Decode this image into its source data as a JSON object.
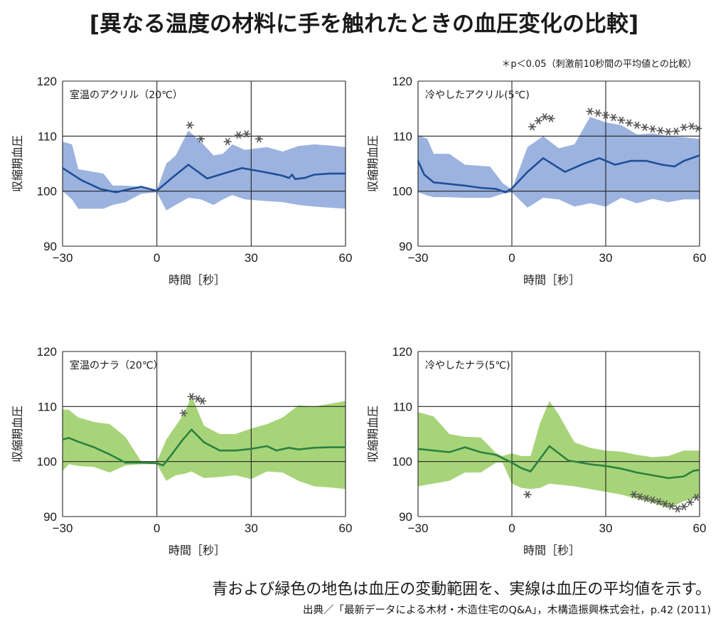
{
  "title": "[異なる温度の材料に手を触れたときの血圧変化の比較]",
  "significance_note": "＊p＜0.05（刺激前10秒間の平均値との比較）",
  "caption": "青および緑色の地色は血圧の変動範囲を、実線は血圧の平均値を示す。",
  "source": "出典／「最新データによる木材・木造住宅のQ&A」，木構造振興株式会社，p.42 (2011)",
  "colors": {
    "blue_band": "#9cb3df",
    "blue_line": "#1f4f97",
    "green_band": "#a8d479",
    "green_line": "#2a8240",
    "grid": "#222222",
    "asterisk": "#555555"
  },
  "chart_data": [
    {
      "type": "line",
      "panel_label": "室温のアクリル（20℃）",
      "xlabel": "時間［秒］",
      "ylabel": "収縮期血圧",
      "xlim": [
        -30,
        60
      ],
      "ylim": [
        90,
        120
      ],
      "xticks": [
        -30,
        0,
        30,
        60
      ],
      "yticks": [
        90,
        100,
        110,
        120
      ],
      "xtick_labels": [
        "−30",
        "0",
        "30",
        "60"
      ],
      "ytick_labels": [
        "90",
        "100",
        "110",
        "120"
      ],
      "grid": true,
      "color_key": "blue",
      "mean": {
        "x": [
          -30,
          -24,
          -18,
          -13,
          -10,
          -5,
          -1,
          0,
          5,
          10,
          16,
          20,
          27,
          34,
          40,
          42,
          43,
          44,
          47,
          50,
          55,
          60
        ],
        "y": [
          104.2,
          102.0,
          100.4,
          99.8,
          100.2,
          100.8,
          100.2,
          100.1,
          102.5,
          104.8,
          102.3,
          103.0,
          104.2,
          103.5,
          102.8,
          102.4,
          103.0,
          102.2,
          102.4,
          103.0,
          103.2,
          103.2
        ]
      },
      "band_upper": {
        "x": [
          -30,
          -27,
          -25,
          -20,
          -17,
          -14,
          -10,
          -5,
          0,
          3,
          6,
          10,
          14,
          18,
          21,
          24,
          28,
          35,
          40,
          45,
          50,
          55,
          60
        ],
        "y": [
          109.0,
          108.5,
          104.0,
          103.5,
          103.2,
          101.0,
          101.0,
          100.8,
          100.2,
          105.0,
          106.5,
          111.0,
          109.0,
          106.5,
          106.8,
          108.5,
          107.5,
          108.0,
          107.2,
          108.2,
          108.5,
          108.3,
          108.0
        ]
      },
      "band_lower": {
        "x": [
          -30,
          -27,
          -25,
          -20,
          -17,
          -14,
          -10,
          -5,
          0,
          3,
          6,
          10,
          14,
          18,
          21,
          24,
          28,
          35,
          40,
          45,
          50,
          55,
          60
        ],
        "y": [
          100.0,
          98.5,
          96.8,
          96.8,
          96.8,
          97.5,
          98.0,
          99.5,
          99.8,
          96.5,
          97.5,
          98.8,
          98.5,
          97.5,
          98.5,
          99.3,
          98.5,
          98.2,
          98.0,
          97.5,
          97.2,
          97.0,
          96.8
        ]
      },
      "significant_marks": [
        {
          "x": 10.5,
          "y": 112.0
        },
        {
          "x": 14,
          "y": 109.5
        },
        {
          "x": 22.5,
          "y": 109.0
        },
        {
          "x": 26,
          "y": 110.2
        },
        {
          "x": 28.5,
          "y": 110.4
        },
        {
          "x": 32.5,
          "y": 109.5
        }
      ]
    },
    {
      "type": "line",
      "panel_label": "冷やしたアクリル(5℃)",
      "xlabel": "時間［秒］",
      "ylabel": "収縮期血圧",
      "xlim": [
        -30,
        60
      ],
      "ylim": [
        90,
        120
      ],
      "xticks": [
        -30,
        0,
        30,
        60
      ],
      "yticks": [
        90,
        100,
        110,
        120
      ],
      "xtick_labels": [
        "−30",
        "0",
        "30",
        "60"
      ],
      "ytick_labels": [
        "90",
        "100",
        "110",
        "120"
      ],
      "grid": true,
      "color_key": "blue",
      "mean": {
        "x": [
          -30,
          -28,
          -25,
          -20,
          -15,
          -10,
          -5,
          -2,
          0,
          5,
          10,
          17,
          23,
          28,
          33,
          38,
          43,
          48,
          52,
          55,
          60
        ],
        "y": [
          105.5,
          103.0,
          101.6,
          101.3,
          101.0,
          100.6,
          100.4,
          99.8,
          100.5,
          103.5,
          106.0,
          103.5,
          105.0,
          106.0,
          104.8,
          105.5,
          105.5,
          104.8,
          104.5,
          105.5,
          106.5
        ]
      },
      "band_upper": {
        "x": [
          -30,
          -27,
          -25,
          -20,
          -15,
          -10,
          -7,
          -3,
          0,
          5,
          10,
          15,
          20,
          25,
          30,
          35,
          40,
          45,
          50,
          55,
          60
        ],
        "y": [
          110.2,
          109.5,
          106.8,
          106.8,
          104.8,
          104.6,
          104.5,
          101.5,
          100.3,
          108.0,
          110.0,
          107.8,
          108.5,
          113.5,
          112.5,
          112.0,
          110.3,
          110.5,
          110.0,
          109.8,
          109.5
        ]
      },
      "band_lower": {
        "x": [
          -30,
          -27,
          -25,
          -20,
          -15,
          -10,
          -7,
          -3,
          0,
          5,
          10,
          15,
          20,
          25,
          30,
          35,
          40,
          45,
          50,
          55,
          60
        ],
        "y": [
          99.8,
          99.2,
          98.9,
          98.9,
          98.8,
          98.8,
          98.8,
          99.5,
          99.8,
          97.0,
          98.8,
          98.5,
          97.2,
          97.8,
          97.2,
          98.8,
          97.8,
          98.6,
          98.0,
          98.5,
          98.5
        ]
      },
      "significant_marks": [
        {
          "x": 6.5,
          "y": 111.7
        },
        {
          "x": 8.5,
          "y": 112.8
        },
        {
          "x": 10.5,
          "y": 113.5
        },
        {
          "x": 12.5,
          "y": 113.2
        },
        {
          "x": 25,
          "y": 114.5
        },
        {
          "x": 27.5,
          "y": 114.2
        },
        {
          "x": 30,
          "y": 113.8
        },
        {
          "x": 32.5,
          "y": 113.4
        },
        {
          "x": 35,
          "y": 112.9
        },
        {
          "x": 37.5,
          "y": 112.4
        },
        {
          "x": 40,
          "y": 112.0
        },
        {
          "x": 42.5,
          "y": 111.6
        },
        {
          "x": 45,
          "y": 111.3
        },
        {
          "x": 47.5,
          "y": 111.0
        },
        {
          "x": 50,
          "y": 110.8
        },
        {
          "x": 52.5,
          "y": 110.9
        },
        {
          "x": 55,
          "y": 111.6
        },
        {
          "x": 57.5,
          "y": 111.8
        },
        {
          "x": 59.5,
          "y": 111.4
        }
      ]
    },
    {
      "type": "line",
      "panel_label": "室温のナラ（20℃）",
      "xlabel": "時間［秒］",
      "ylabel": "収縮期血圧",
      "xlim": [
        -30,
        60
      ],
      "ylim": [
        90,
        120
      ],
      "xticks": [
        -30,
        0,
        30,
        60
      ],
      "yticks": [
        90,
        100,
        110,
        120
      ],
      "xtick_labels": [
        "−30",
        "0",
        "30",
        "60"
      ],
      "ytick_labels": [
        "90",
        "100",
        "110",
        "120"
      ],
      "grid": true,
      "color_key": "green",
      "mean": {
        "x": [
          -30,
          -28,
          -25,
          -20,
          -15,
          -10,
          -5,
          0,
          2,
          5,
          8,
          11,
          15,
          20,
          25,
          30,
          35,
          38,
          42,
          45,
          50,
          55,
          60
        ],
        "y": [
          104.0,
          104.3,
          103.6,
          102.6,
          101.3,
          99.8,
          99.8,
          99.7,
          99.3,
          101.5,
          103.8,
          105.8,
          103.5,
          102.0,
          102.0,
          102.3,
          102.8,
          102.0,
          102.5,
          102.2,
          102.5,
          102.6,
          102.6
        ]
      },
      "band_upper": {
        "x": [
          -30,
          -28,
          -25,
          -20,
          -15,
          -10,
          -5,
          0,
          3,
          6,
          9,
          11,
          15,
          20,
          25,
          30,
          35,
          40,
          45,
          50,
          55,
          60
        ],
        "y": [
          109.5,
          109.4,
          108.0,
          107.2,
          106.8,
          104.5,
          100.0,
          100.0,
          104.0,
          106.5,
          109.0,
          112.0,
          106.5,
          105.0,
          105.0,
          106.0,
          106.8,
          108.0,
          110.2,
          110.0,
          110.5,
          111.0
        ]
      },
      "band_lower": {
        "x": [
          -30,
          -28,
          -25,
          -20,
          -15,
          -10,
          -5,
          0,
          3,
          6,
          9,
          11,
          15,
          20,
          25,
          30,
          35,
          40,
          45,
          50,
          55,
          60
        ],
        "y": [
          98.3,
          99.5,
          99.2,
          99.0,
          98.0,
          99.3,
          99.5,
          99.5,
          96.5,
          97.5,
          97.8,
          98.2,
          97.0,
          97.2,
          97.5,
          96.8,
          98.2,
          98.0,
          96.5,
          95.5,
          95.3,
          95.0
        ]
      },
      "significant_marks": [
        {
          "x": 8.5,
          "y": 108.8
        },
        {
          "x": 11,
          "y": 111.8
        },
        {
          "x": 13,
          "y": 111.4
        },
        {
          "x": 14.5,
          "y": 111.0
        }
      ]
    },
    {
      "type": "line",
      "panel_label": "冷やしたナラ(5℃)",
      "xlabel": "時間［秒］",
      "ylabel": "収縮期血圧",
      "xlim": [
        -30,
        60
      ],
      "ylim": [
        90,
        120
      ],
      "xticks": [
        -30,
        0,
        30,
        60
      ],
      "yticks": [
        90,
        100,
        110,
        120
      ],
      "xtick_labels": [
        "−30",
        "0",
        "30",
        "60"
      ],
      "ytick_labels": [
        "90",
        "100",
        "110",
        "120"
      ],
      "grid": true,
      "color_key": "green",
      "mean": {
        "x": [
          -30,
          -25,
          -20,
          -15,
          -10,
          -5,
          0,
          3,
          6,
          9,
          12,
          15,
          18,
          25,
          30,
          35,
          40,
          45,
          50,
          55,
          58,
          60
        ],
        "y": [
          102.3,
          102.0,
          101.7,
          102.6,
          101.7,
          101.2,
          99.8,
          98.8,
          98.2,
          100.5,
          102.8,
          101.5,
          100.2,
          99.5,
          99.2,
          98.7,
          98.0,
          97.5,
          97.0,
          97.3,
          98.3,
          98.5
        ]
      },
      "band_upper": {
        "x": [
          -30,
          -25,
          -20,
          -15,
          -10,
          -5,
          -3,
          0,
          3,
          6,
          9,
          12,
          15,
          20,
          25,
          30,
          35,
          40,
          45,
          50,
          55,
          60
        ],
        "y": [
          109.0,
          108.2,
          105.0,
          104.5,
          104.4,
          101.5,
          101.0,
          101.5,
          101.0,
          101.0,
          107.0,
          111.0,
          108.5,
          103.5,
          102.5,
          102.0,
          101.8,
          101.2,
          100.8,
          101.0,
          102.0,
          102.0
        ]
      },
      "band_lower": {
        "x": [
          -30,
          -25,
          -20,
          -15,
          -10,
          -5,
          -3,
          0,
          3,
          6,
          9,
          12,
          15,
          20,
          25,
          30,
          35,
          40,
          45,
          50,
          55,
          60
        ],
        "y": [
          95.5,
          96.0,
          96.5,
          98.0,
          98.0,
          99.8,
          99.8,
          96.0,
          95.2,
          95.0,
          95.2,
          96.0,
          95.8,
          95.5,
          95.0,
          94.5,
          94.0,
          93.2,
          92.5,
          91.5,
          92.8,
          93.5
        ]
      },
      "significant_marks": [
        {
          "x": 5,
          "y": 94.0
        },
        {
          "x": 39,
          "y": 94.0
        },
        {
          "x": 41,
          "y": 93.6
        },
        {
          "x": 43,
          "y": 93.3
        },
        {
          "x": 45,
          "y": 93.0
        },
        {
          "x": 47,
          "y": 92.7
        },
        {
          "x": 49,
          "y": 92.3
        },
        {
          "x": 51,
          "y": 91.9
        },
        {
          "x": 53,
          "y": 91.4
        },
        {
          "x": 55,
          "y": 91.8
        },
        {
          "x": 57,
          "y": 92.6
        },
        {
          "x": 59,
          "y": 93.5
        }
      ]
    }
  ]
}
